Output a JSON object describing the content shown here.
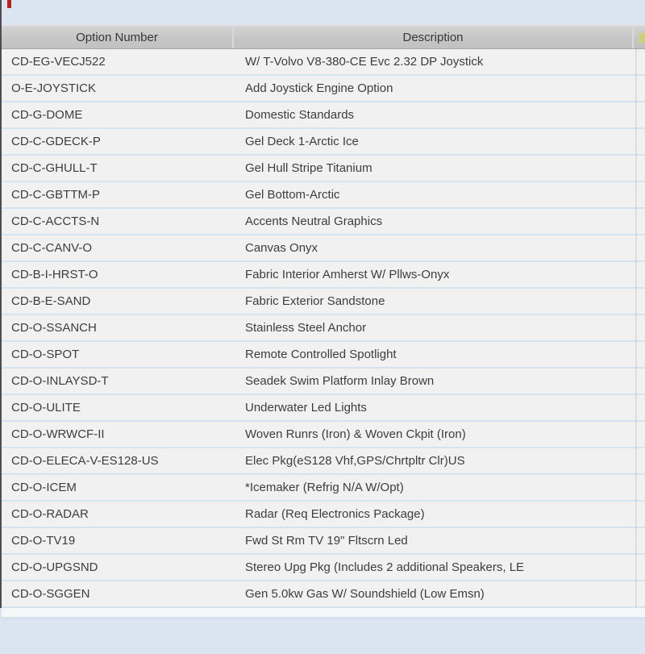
{
  "table": {
    "columns": [
      {
        "label": "Option Number"
      },
      {
        "label": "Description"
      }
    ],
    "rows": [
      {
        "option_number": "CD-EG-VECJ522",
        "description": "W/ T-Volvo V8-380-CE Evc 2.32 DP Joystick"
      },
      {
        "option_number": "O-E-JOYSTICK",
        "description": "Add Joystick Engine Option"
      },
      {
        "option_number": "CD-G-DOME",
        "description": "Domestic Standards"
      },
      {
        "option_number": "CD-C-GDECK-P",
        "description": "Gel Deck 1-Arctic Ice"
      },
      {
        "option_number": "CD-C-GHULL-T",
        "description": "Gel Hull Stripe Titanium"
      },
      {
        "option_number": "CD-C-GBTTM-P",
        "description": "Gel Bottom-Arctic"
      },
      {
        "option_number": "CD-C-ACCTS-N",
        "description": "Accents Neutral Graphics"
      },
      {
        "option_number": "CD-C-CANV-O",
        "description": "Canvas Onyx"
      },
      {
        "option_number": "CD-B-I-HRST-O",
        "description": "Fabric Interior Amherst W/ Pllws-Onyx"
      },
      {
        "option_number": "CD-B-E-SAND",
        "description": "Fabric Exterior Sandstone"
      },
      {
        "option_number": "CD-O-SSANCH",
        "description": "Stainless Steel Anchor"
      },
      {
        "option_number": "CD-O-SPOT",
        "description": "Remote Controlled Spotlight"
      },
      {
        "option_number": "CD-O-INLAYSD-T",
        "description": "Seadek Swim Platform Inlay Brown"
      },
      {
        "option_number": "CD-O-ULITE",
        "description": "Underwater Led Lights"
      },
      {
        "option_number": "CD-O-WRWCF-II",
        "description": "Woven Runrs (Iron) & Woven Ckpit (Iron)"
      },
      {
        "option_number": "CD-O-ELECA-V-ES128-US",
        "description": "Elec Pkg(eS128 Vhf,GPS/Chrtpltr Clr)US"
      },
      {
        "option_number": "CD-O-ICEM",
        "description": "*Icemaker (Refrig N/A W/Opt)"
      },
      {
        "option_number": "CD-O-RADAR",
        "description": "Radar (Req Electronics Package)"
      },
      {
        "option_number": "CD-O-TV19",
        "description": "Fwd St Rm TV 19\" Fltscrn Led"
      },
      {
        "option_number": "CD-O-UPGSND",
        "description": "Stereo Upg Pkg (Includes 2 additional Speakers, LE"
      },
      {
        "option_number": "CD-O-SGGEN",
        "description": "Gen 5.0kw Gas W/ Soundshield (Low Emsn)"
      }
    ]
  },
  "colors": {
    "page_background": "#dbe5f1",
    "header_background": "#c8c8c8",
    "row_background": "#f1f1f1",
    "row_separator": "#d7e2ef",
    "left_edge_line": "#4d4d4d",
    "red_marker": "#bf2218",
    "header_text": "#373737",
    "row_text": "#3d3d3d"
  }
}
